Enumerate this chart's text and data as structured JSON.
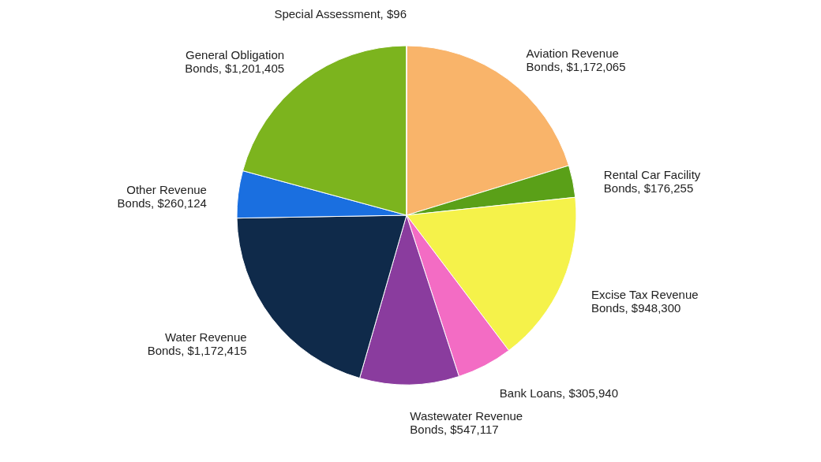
{
  "chart_data": {
    "type": "pie",
    "categories": [
      "Aviation Revenue Bonds",
      "Rental Car Facility Bonds",
      "Excise Tax Revenue Bonds",
      "Bank Loans",
      "Wastewater Revenue Bonds",
      "Water Revenue Bonds",
      "Other Revenue Bonds",
      "General Obligation Bonds",
      "Special Assessment"
    ],
    "values": [
      1172065,
      176255,
      948300,
      305940,
      547117,
      1172415,
      260124,
      1201405,
      96
    ],
    "value_labels": [
      "$1,172,065",
      "$176,255",
      "$948,300",
      "$305,940",
      "$547,117",
      "$1,172,415",
      "$260,124",
      "$1,201,405",
      "$96"
    ],
    "colors": [
      "#f9b46a",
      "#5aa018",
      "#f5f24a",
      "#f36cc4",
      "#8a3c9e",
      "#0f2a4a",
      "#1a6fe0",
      "#7cb41e",
      "#8a8a8a"
    ],
    "legend": false
  }
}
